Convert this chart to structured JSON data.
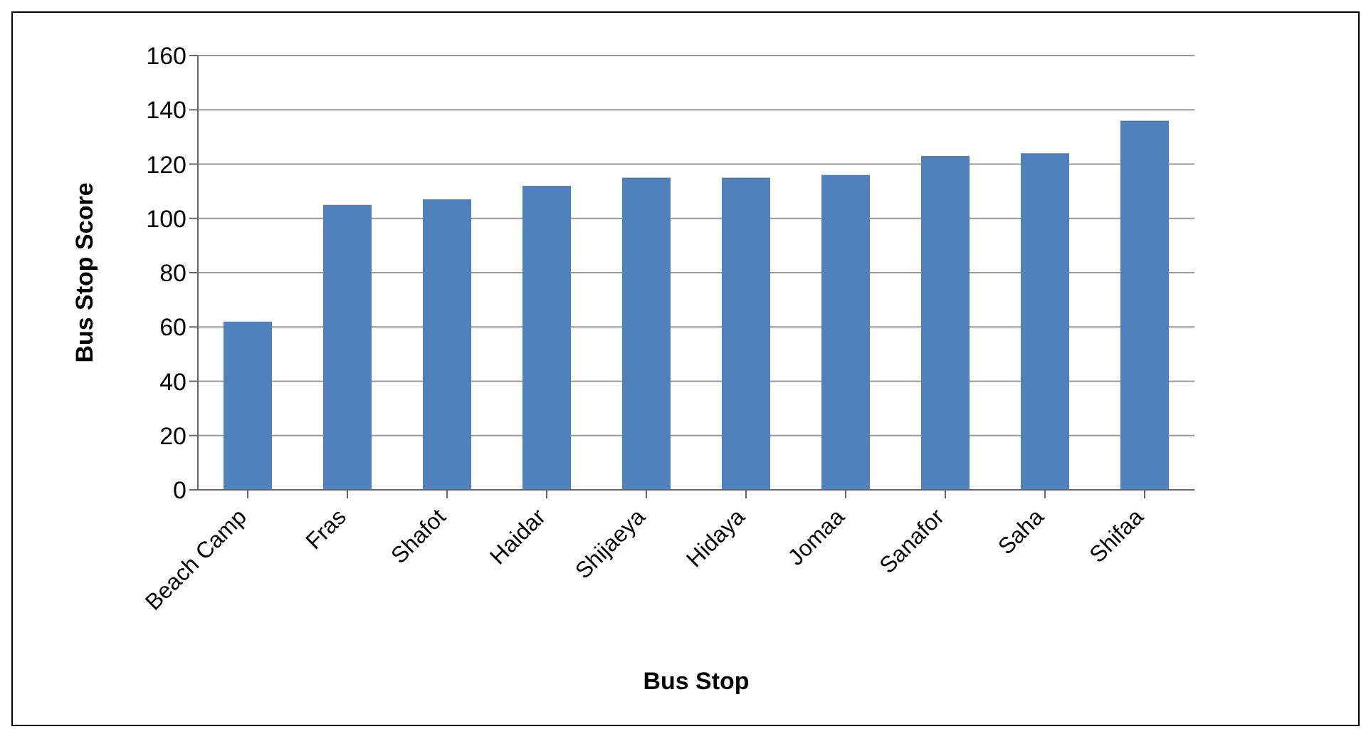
{
  "chart_data": {
    "type": "bar",
    "xlabel": "Bus Stop",
    "ylabel": "Bus Stop Score",
    "categories": [
      "Beach Camp",
      "Fras",
      "Shafot",
      "Haidar",
      "Shijaeya",
      "Hidaya",
      "Jomaa",
      "Sanafor",
      "Saha",
      "Shifaa"
    ],
    "values": [
      62,
      105,
      107,
      112,
      115,
      115,
      116,
      123,
      124,
      136
    ],
    "color": "#4f81bd",
    "ylim": [
      0,
      160
    ],
    "yticks": [
      0,
      20,
      40,
      60,
      80,
      100,
      120,
      140,
      160
    ],
    "grid": "y",
    "legend": false
  }
}
